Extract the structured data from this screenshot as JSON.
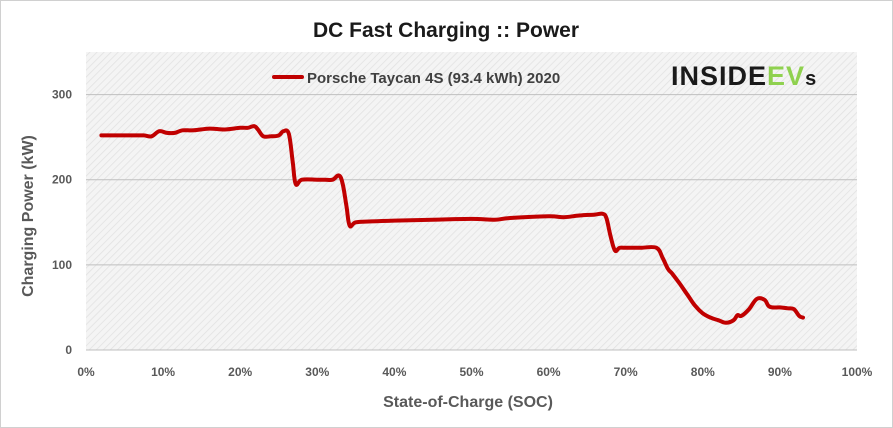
{
  "chart_data": {
    "type": "line",
    "title": "DC Fast Charging :: Power",
    "xlabel": "State-of-Charge  (SOC)",
    "ylabel": "Charging Power (kW)",
    "xlim": [
      0,
      100
    ],
    "ylim": [
      0,
      350
    ],
    "x_ticks": [
      "0%",
      "10%",
      "20%",
      "30%",
      "40%",
      "50%",
      "60%",
      "70%",
      "80%",
      "90%",
      "100%"
    ],
    "y_ticks": [
      "0",
      "100",
      "200",
      "300"
    ],
    "grid": true,
    "legend_position": "top",
    "series": [
      {
        "name": "Porsche Taycan 4S (93.4 kWh) 2020",
        "color": "#c00000",
        "x": [
          2,
          4,
          6,
          7.5,
          8.5,
          9.5,
          10.5,
          11.5,
          12.5,
          14,
          16,
          18,
          20,
          21,
          21.8,
          22.3,
          23,
          24,
          25,
          25.6,
          26.3,
          26.8,
          27.2,
          28,
          30,
          31,
          32,
          32.8,
          33.3,
          33.8,
          34.2,
          35,
          37,
          40,
          45,
          50,
          53,
          55,
          60,
          62,
          64,
          66,
          67,
          67.5,
          68,
          68.6,
          69.2,
          70,
          71,
          72,
          74,
          74.8,
          75.5,
          76,
          77,
          78,
          79,
          80,
          81,
          82,
          83,
          84,
          84.5,
          85,
          86,
          87,
          88,
          88.5,
          89,
          90,
          91,
          91.8,
          92.5,
          93
        ],
        "y": [
          252,
          252,
          252,
          252,
          251,
          257,
          255,
          255,
          258,
          258,
          260,
          259,
          261,
          261,
          263,
          259,
          251,
          251,
          252,
          257,
          254,
          222,
          195,
          200,
          200,
          200,
          200,
          205,
          195,
          168,
          146,
          150,
          151,
          152,
          153,
          154,
          153,
          155,
          157,
          156,
          158,
          159,
          160,
          155,
          135,
          117,
          120,
          120,
          120,
          120,
          120,
          108,
          95,
          90,
          78,
          65,
          52,
          43,
          38,
          35,
          32,
          35,
          41,
          40,
          48,
          60,
          59,
          52,
          50,
          50,
          49,
          48,
          40,
          38
        ]
      }
    ]
  },
  "logo": {
    "main": "INSIDE",
    "accent": "EV",
    "suffix": "s",
    "accent_color": "#8fd14f"
  },
  "colors": {
    "plot_bg": "#f2f2f2",
    "grid": "#bfbfbf",
    "line": "#c00000"
  }
}
